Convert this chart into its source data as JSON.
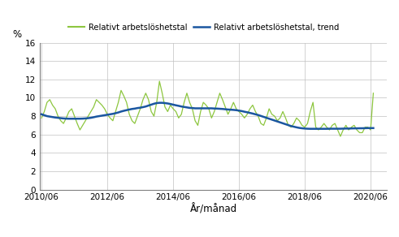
{
  "ylabel": "%",
  "xlabel": "År/månad",
  "yticks": [
    0,
    2,
    4,
    6,
    8,
    10,
    12,
    14,
    16
  ],
  "ylim": [
    0,
    16
  ],
  "xtick_labels": [
    "2010/06",
    "2012/06",
    "2014/06",
    "2016/06",
    "2018/06",
    "2020/06"
  ],
  "legend_labels": [
    "Relativt arbetslöshetstal",
    "Relativt arbetslöshetstal, trend"
  ],
  "line_color": "#8dc63f",
  "trend_color": "#1a56a0",
  "background_color": "#ffffff",
  "grid_color": "#c0c0c0",
  "actual": [
    7.8,
    8.5,
    9.5,
    9.8,
    9.2,
    8.8,
    8.0,
    7.5,
    7.2,
    7.8,
    8.5,
    8.8,
    8.0,
    7.2,
    6.5,
    7.0,
    7.5,
    8.0,
    8.5,
    9.0,
    9.8,
    9.5,
    9.2,
    8.8,
    8.2,
    7.8,
    7.5,
    8.5,
    9.5,
    10.8,
    10.2,
    9.5,
    8.2,
    7.5,
    7.2,
    8.0,
    8.8,
    9.8,
    10.5,
    9.8,
    8.5,
    8.0,
    9.5,
    11.8,
    10.5,
    9.0,
    8.5,
    9.2,
    8.8,
    8.5,
    7.8,
    8.2,
    9.5,
    10.5,
    9.5,
    8.8,
    7.5,
    7.0,
    8.5,
    9.5,
    9.2,
    8.8,
    7.8,
    8.5,
    9.5,
    10.5,
    9.8,
    9.0,
    8.2,
    8.8,
    9.5,
    8.8,
    8.5,
    8.2,
    7.8,
    8.2,
    8.8,
    9.2,
    8.5,
    8.0,
    7.2,
    7.0,
    7.8,
    8.8,
    8.2,
    8.0,
    7.5,
    7.8,
    8.5,
    7.8,
    7.0,
    6.8,
    7.2,
    7.8,
    7.5,
    7.0,
    6.8,
    7.2,
    8.5,
    9.5,
    6.8,
    6.5,
    6.8,
    7.2,
    6.8,
    6.5,
    7.0,
    7.2,
    6.5,
    5.8,
    6.5,
    7.0,
    6.5,
    6.8,
    7.0,
    6.5,
    6.2,
    6.2,
    6.8,
    6.8,
    6.5,
    10.5
  ],
  "trend": [
    8.2,
    8.1,
    8.0,
    7.95,
    7.9,
    7.85,
    7.82,
    7.78,
    7.75,
    7.73,
    7.72,
    7.72,
    7.72,
    7.72,
    7.72,
    7.73,
    7.75,
    7.78,
    7.82,
    7.88,
    7.95,
    8.0,
    8.05,
    8.1,
    8.15,
    8.2,
    8.25,
    8.32,
    8.4,
    8.5,
    8.58,
    8.65,
    8.72,
    8.78,
    8.82,
    8.88,
    8.92,
    8.98,
    9.05,
    9.15,
    9.25,
    9.35,
    9.42,
    9.45,
    9.45,
    9.42,
    9.38,
    9.32,
    9.25,
    9.18,
    9.12,
    9.05,
    9.0,
    8.95,
    8.9,
    8.88,
    8.85,
    8.85,
    8.85,
    8.85,
    8.85,
    8.85,
    8.85,
    8.83,
    8.82,
    8.8,
    8.78,
    8.75,
    8.72,
    8.7,
    8.68,
    8.65,
    8.6,
    8.55,
    8.48,
    8.42,
    8.35,
    8.28,
    8.2,
    8.12,
    8.02,
    7.92,
    7.82,
    7.72,
    7.62,
    7.52,
    7.42,
    7.32,
    7.22,
    7.12,
    7.02,
    6.92,
    6.85,
    6.78,
    6.72,
    6.68,
    6.65,
    6.63,
    6.62,
    6.62,
    6.62,
    6.62,
    6.62,
    6.62,
    6.62,
    6.63,
    6.63,
    6.63,
    6.63,
    6.63,
    6.64,
    6.65,
    6.65,
    6.66,
    6.67,
    6.67,
    6.68,
    6.68,
    6.69,
    6.7,
    6.7,
    6.7
  ]
}
